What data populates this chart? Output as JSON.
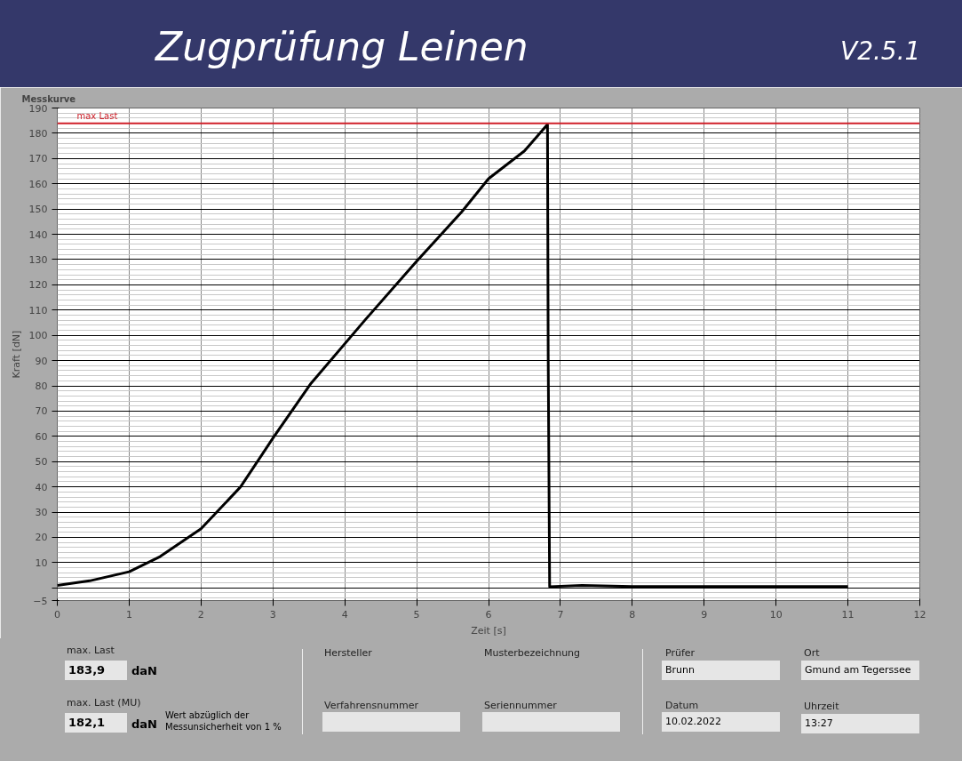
{
  "chart_data": {
    "type": "line",
    "title": "Zugprüfung Leinen",
    "subtitle": "V2.5.1",
    "xlabel": "Zeit [s]",
    "ylabel": "Kraft [dN]",
    "x": [
      0,
      0.45,
      1,
      1.43,
      2,
      2.55,
      3.01,
      3.53,
      4.28,
      4.99,
      5.63,
      6.0,
      6.5,
      6.82,
      6.83,
      6.85,
      7.3,
      8,
      9,
      10,
      11.0
    ],
    "series": [
      {
        "color": "#000000",
        "values": [
          1,
          2.8,
          6.4,
          12.4,
          23.4,
          40,
          59.7,
          81,
          106,
          129,
          149,
          162,
          173,
          183.5,
          91,
          0.5,
          1,
          0.5,
          0.5,
          0.5,
          0.5
        ]
      }
    ],
    "xlim": [
      0,
      12
    ],
    "ylim": [
      -5,
      190
    ],
    "xticks": [
      0,
      1,
      2,
      3,
      4,
      5,
      6,
      7,
      8,
      9,
      10,
      11,
      12
    ],
    "yticks": [
      -5,
      {
        "value": 0,
        "label": null
      },
      10,
      20,
      30,
      40,
      50,
      60,
      70,
      80,
      90,
      100,
      110,
      120,
      130,
      140,
      150,
      160,
      170,
      180,
      190
    ],
    "ref_lines": [
      {
        "axis": "y",
        "value": 183.9,
        "label": "max Last",
        "color": "#d0202a"
      }
    ],
    "grid": true,
    "marker": "none",
    "line_style": "solid",
    "annotations": [
      "Messkurve",
      "max. Last",
      "183,9",
      "daN",
      "max. Last (MU)",
      "182,1",
      "daN",
      "Wert abzüglich der Messunsicherheit von 1 %",
      "Hersteller",
      "Musterbezeichnung",
      "Verfahrensnummer",
      "Seriennummer",
      "Prüfer",
      "Brunn",
      "Ort",
      "Gmund am Tegerssee",
      "Datum",
      "10.02.2022",
      "Uhrzeit",
      "13:27"
    ]
  }
}
